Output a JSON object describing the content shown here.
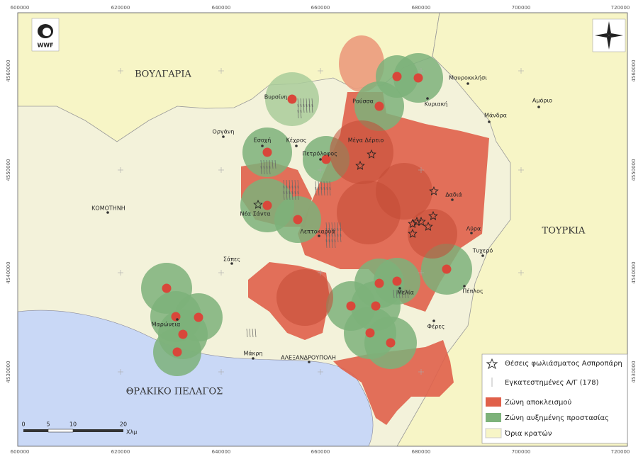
{
  "logo": "WWF",
  "grid": {
    "top": [
      "600000",
      "620000",
      "640000",
      "660000",
      "680000",
      "700000",
      "720000"
    ],
    "bottom": [
      "600000",
      "620000",
      "640000",
      "660000",
      "680000",
      "700000",
      "720000"
    ],
    "left": [
      "4560000",
      "4550000",
      "4540000",
      "4530000"
    ],
    "right": [
      "4560000",
      "4550000",
      "4540000",
      "4530000"
    ]
  },
  "countries": [
    "ΒΟΥΛΓΑΡΙΑ",
    "ΤΟΥΡΚΙΑ",
    "ΘΡΑΚΙΚΟ ΠΕΛΑΓΟΣ"
  ],
  "places": [
    "Βυρσίνη",
    "Ρούσσα",
    "Μαυροκκλήσι",
    "Κυριακή",
    "Αμόριο",
    "Μάνδρα",
    "Οργάνη",
    "Εσοχή",
    "Κέχρος",
    "Πετρόλοφος",
    "Μέγα Δέρειο",
    "ΚΟΜΟΤΗΝΗ",
    "Νέα Σάντα",
    "Λεπτοκαρυά",
    "Δαδιά",
    "Λύρα",
    "Τυχερό",
    "Σάπες",
    "Μελία",
    "Πέπλος",
    "Φέρες",
    "Μαρώνεια",
    "Μάκρη",
    "ΑΛΕΞΑΝΔΡΟΥΠΟΛΗ"
  ],
  "legend": [
    "Θέσεις φωλιάσματος Ασπροπάρη",
    "Εγκατεστημένες Α/Γ (178)",
    "Ζώνη αποκλεισμού",
    "Ζώνη αυξημένης προστασίας",
    "Όρια κρατών"
  ],
  "scale": {
    "ticks": [
      "0",
      "5",
      "10",
      "20"
    ],
    "unit": "Χλμ"
  }
}
